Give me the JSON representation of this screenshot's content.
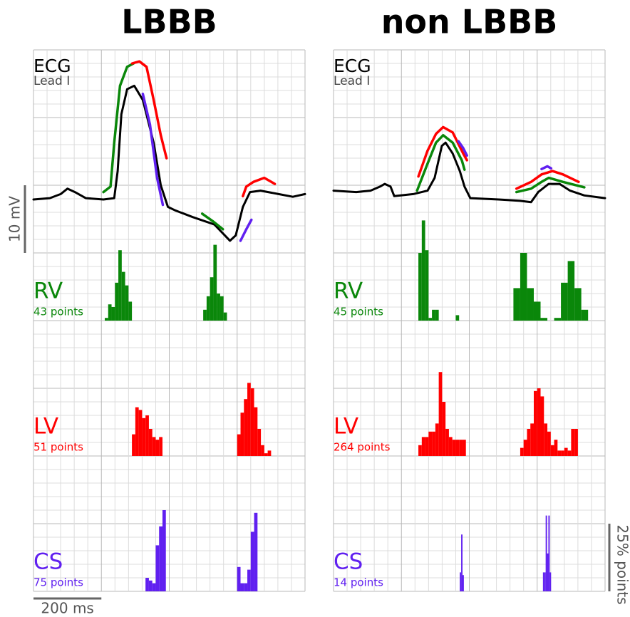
{
  "chart_data": [
    {
      "type": "histogram",
      "title": "LBBB",
      "xlim": [
        0,
        800
      ],
      "grid": true,
      "ecg": {
        "label": "ECG",
        "lead": "Lead I",
        "series": [
          {
            "color": "#000000",
            "x": [
              0,
              48,
              80,
              100,
              122,
              154,
              206,
              238,
              248,
              259,
              276,
              297,
              322,
              354,
              375,
              396,
              417,
              469,
              533,
              579,
              596,
              617,
              638,
              669,
              722,
              764,
              800
            ],
            "values": [
              0,
              0.2,
              0.8,
              1.6,
              1.1,
              0.2,
              0,
              0.2,
              4.2,
              12.6,
              16.3,
              16.8,
              14.7,
              8.4,
              2.1,
              -1.1,
              -1.6,
              -2.6,
              -3.7,
              -6.1,
              -5.3,
              -1.1,
              1.1,
              1.3,
              0.8,
              0.4,
              0.8
            ]
          },
          {
            "color": "#0a870a",
            "x": [
              206,
              227,
              238,
              255,
              276,
              295,
              380,
              497,
              528,
              558
            ],
            "values": [
              1.1,
              1.9,
              8.4,
              16.8,
              19.6,
              20.1,
              null,
              -2.1,
              -3.2,
              -4.4
            ]
          },
          {
            "color": "#ff0000",
            "x": [
              291,
              312,
              333,
              354,
              375,
              392,
              450,
              617,
              627,
              648,
              680,
              711
            ],
            "values": [
              20.1,
              20.4,
              19.6,
              14.7,
              9.5,
              6.1,
              null,
              0.5,
              1.9,
              2.6,
              3.2,
              2.3
            ]
          },
          {
            "color": "#6020f0",
            "x": [
              322,
              343,
              364,
              381,
              450,
              610,
              627,
              642
            ],
            "values": [
              15.6,
              11.1,
              3.2,
              -0.8,
              null,
              -6.1,
              -4.4,
              -3.0
            ]
          }
        ]
      },
      "histograms": [
        {
          "name": "RV",
          "count_label": "43 points",
          "color": "#0a870a",
          "clusters": [
            {
              "bins": [
                210,
                220,
                230,
                240,
                250,
                260,
                270,
                280,
                290
              ],
              "values": [
                1,
                6,
                5,
                14,
                26,
                18,
                13,
                7
              ]
            },
            {
              "bins": [
                500,
                510,
                520,
                530,
                540,
                550,
                560,
                570
              ],
              "values": [
                4,
                9,
                16,
                28,
                10,
                9,
                3
              ]
            }
          ]
        },
        {
          "name": "LV",
          "count_label": "51 points",
          "color": "#ff0000",
          "clusters": [
            {
              "bins": [
                290,
                300,
                310,
                320,
                330,
                340,
                350,
                360,
                370,
                380
              ],
              "values": [
                8,
                18,
                17,
                14,
                15,
                10,
                7,
                6,
                7
              ]
            },
            {
              "bins": [
                600,
                610,
                620,
                630,
                640,
                650,
                660,
                670,
                680,
                690,
                700
              ],
              "values": [
                8,
                16,
                21,
                27,
                25,
                18,
                10,
                4,
                1,
                2
              ]
            }
          ]
        },
        {
          "name": "CS",
          "count_label": "75 points",
          "color": "#6020f0",
          "clusters": [
            {
              "bins": [
                330,
                340,
                350,
                360,
                370,
                380,
                390
              ],
              "values": [
                5,
                4,
                3,
                17,
                24,
                30
              ]
            },
            {
              "bins": [
                600,
                610,
                620,
                630,
                640,
                650,
                660
              ],
              "values": [
                9,
                3,
                3,
                8,
                22,
                29
              ]
            }
          ]
        }
      ]
    },
    {
      "type": "histogram",
      "title": "non LBBB",
      "xlim": [
        0,
        800
      ],
      "grid": true,
      "ecg": {
        "label": "ECG",
        "lead": "Lead I",
        "series": [
          {
            "color": "#000000",
            "x": [
              0,
              67,
              109,
              137,
              151,
              168,
              179,
              235,
              277,
              298,
              319,
              330,
              351,
              372,
              386,
              403,
              487,
              550,
              582,
              603,
              634,
              666,
              697,
              739,
              800
            ],
            "values": [
              1.3,
              1.1,
              1.3,
              1.9,
              2.3,
              1.9,
              0.5,
              0.8,
              1.3,
              3.2,
              7.9,
              8.4,
              6.8,
              4.2,
              1.9,
              0.2,
              0,
              -0.2,
              -0.4,
              1.1,
              2.3,
              2.3,
              1.3,
              0.6,
              0.2
            ]
          },
          {
            "color": "#0a870a",
            "x": [
              246,
              277,
              302,
              323,
              351,
              378,
              386,
              450,
              539,
              582,
              613,
              634,
              676,
              739
            ],
            "values": [
              1.3,
              5.3,
              8.4,
              9.5,
              8.4,
              5.8,
              4.4,
              null,
              1.1,
              1.6,
              2.6,
              3.2,
              2.6,
              1.8
            ]
          },
          {
            "color": "#ff0000",
            "x": [
              250,
              277,
              302,
              323,
              351,
              382,
              393,
              450,
              539,
              582,
              613,
              645,
              676,
              722
            ],
            "values": [
              3.4,
              7.2,
              9.7,
              10.7,
              9.9,
              6.8,
              5.8,
              null,
              1.6,
              2.6,
              3.7,
              4.2,
              3.7,
              2.6
            ]
          },
          {
            "color": "#6020f0",
            "x": [
              368,
              382,
              393,
              450,
              613,
              630,
              641
            ],
            "values": [
              8.6,
              7.6,
              6.5,
              null,
              4.5,
              4.9,
              4.6
            ]
          }
        ]
      },
      "histograms": [
        {
          "name": "RV",
          "count_label": "45 points",
          "color": "#0a870a",
          "clusters": [
            {
              "bins": [
                250,
                260,
                270,
                280,
                290,
                300,
                310,
                320,
                330,
                340,
                350,
                360,
                370
              ],
              "values": [
                25,
                37,
                26,
                1,
                4,
                4,
                0,
                0,
                0,
                0,
                0,
                2
              ]
            },
            {
              "bins": [
                530,
                550,
                570,
                590,
                610,
                630,
                650,
                670,
                690,
                710,
                730,
                750
              ],
              "values": [
                12,
                25,
                12,
                7,
                1,
                0,
                1,
                14,
                22,
                12,
                4
              ]
            }
          ]
        },
        {
          "name": "LV",
          "count_label": "264 points",
          "color": "#ff0000",
          "clusters": [
            {
              "bins": [
                250,
                260,
                270,
                280,
                290,
                300,
                310,
                320,
                330,
                340,
                350,
                360,
                370,
                380,
                390
              ],
              "values": [
                4,
                7,
                7,
                9,
                9,
                12,
                31,
                20,
                10,
                7,
                6,
                6,
                6,
                6
              ]
            },
            {
              "bins": [
                550,
                560,
                570,
                580,
                590,
                600,
                610,
                620,
                630,
                640,
                650,
                660,
                670,
                680,
                690,
                700,
                710,
                720
              ],
              "values": [
                3,
                6,
                10,
                12,
                24,
                25,
                22,
                12,
                9,
                4,
                6,
                2,
                2,
                3,
                2,
                10,
                10
              ]
            }
          ]
        },
        {
          "name": "CS",
          "count_label": "14 points",
          "color": "#6020f0",
          "clusters": [
            {
              "bins": [
                372,
                376,
                380,
                384
              ],
              "values": [
                7,
                21,
                6
              ]
            },
            {
              "bins": [
                617,
                621,
                625,
                629,
                633,
                637,
                641
              ],
              "values": [
                7,
                7,
                28,
                14,
                28,
                7
              ]
            }
          ]
        }
      ]
    }
  ],
  "scale_bars": {
    "voltage": {
      "value": 10,
      "label": "10 mV"
    },
    "time": {
      "value": 200,
      "label": "200 ms"
    },
    "fraction": {
      "value": 25,
      "label": "25% points"
    }
  }
}
